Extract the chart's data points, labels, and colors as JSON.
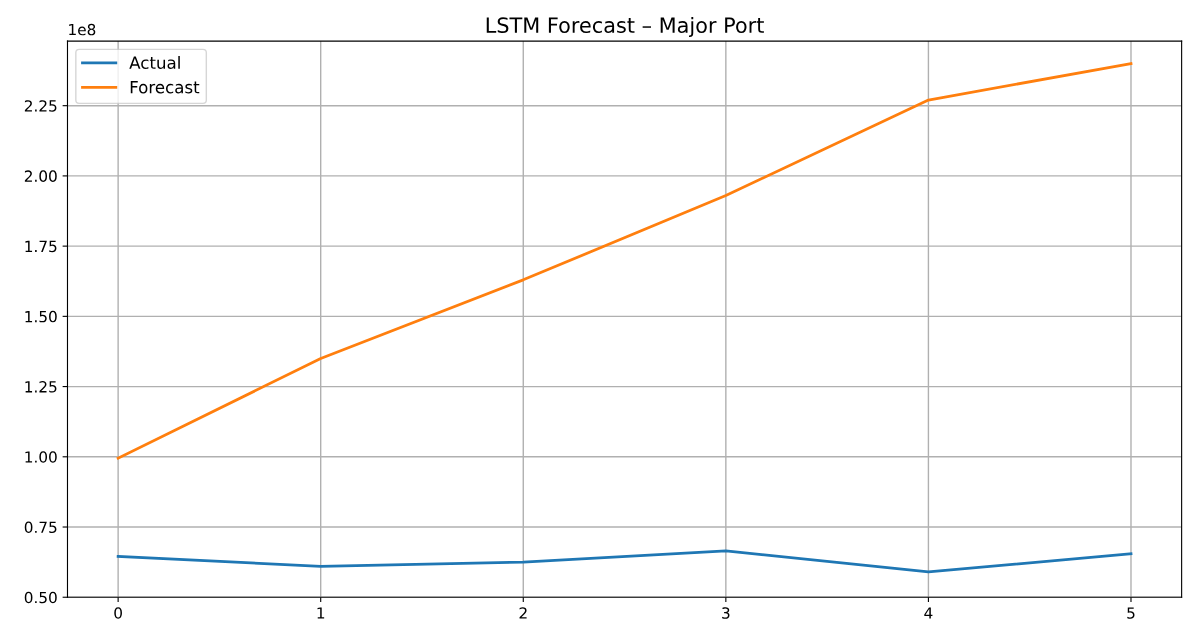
{
  "chart_data": {
    "type": "line",
    "title": "LSTM Forecast – Major Port",
    "x": [
      0,
      1,
      2,
      3,
      4,
      5
    ],
    "series": [
      {
        "name": "Actual",
        "color": "#1f77b4",
        "values": [
          0.645,
          0.61,
          0.625,
          0.665,
          0.59,
          0.655
        ]
      },
      {
        "name": "Forecast",
        "color": "#ff7f0e",
        "values": [
          0.995,
          1.35,
          1.63,
          1.93,
          2.27,
          2.4
        ]
      }
    ],
    "xlim": [
      -0.25,
      5.25
    ],
    "xticks": [
      0,
      1,
      2,
      3,
      4,
      5
    ],
    "ylim": [
      0.5,
      2.48
    ],
    "yticks": [
      {
        "value": 0.5,
        "label": "0.50"
      },
      0.75,
      {
        "value": 1.0,
        "label": "1.00"
      },
      1.25,
      {
        "value": 1.5,
        "label": "1.50"
      },
      1.75,
      {
        "value": 2.0,
        "label": "2.00"
      },
      2.25
    ],
    "annotations": [
      "1e8"
    ],
    "grid": true,
    "legend": "top left",
    "marker": "none",
    "line_style": "solid"
  }
}
